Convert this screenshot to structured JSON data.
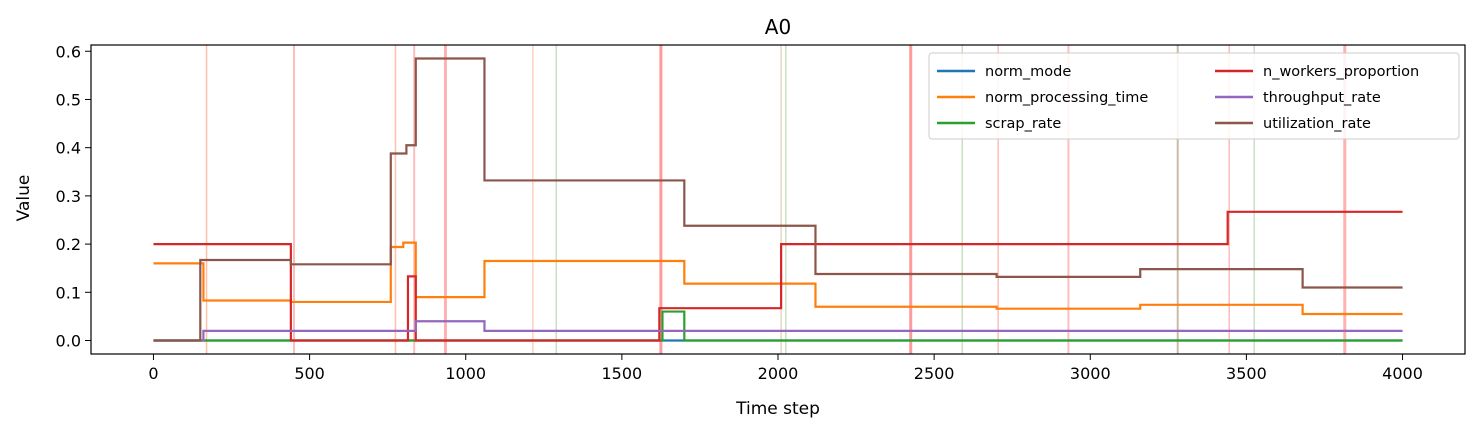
{
  "chart_data": {
    "type": "line",
    "step": true,
    "title": "A0",
    "xlabel": "Time step",
    "ylabel": "Value",
    "xlim": [
      -200,
      4200
    ],
    "ylim": [
      -0.028,
      0.613
    ],
    "xticks": [
      0,
      500,
      1000,
      1500,
      2000,
      2500,
      3000,
      3500,
      4000
    ],
    "yticks": [
      0.0,
      0.1,
      0.2,
      0.3,
      0.4,
      0.5,
      0.6
    ],
    "xtick_labels": [
      "0",
      "500",
      "1000",
      "1500",
      "2000",
      "2500",
      "3000",
      "3500",
      "4000"
    ],
    "ytick_labels": [
      "0.0",
      "0.1",
      "0.2",
      "0.3",
      "0.4",
      "0.5",
      "0.6"
    ],
    "grid": false,
    "legend": {
      "position": "top-right",
      "columns": 2
    },
    "series": [
      {
        "name": "norm_mode",
        "color": "#1f77b4",
        "points": [
          [
            0,
            0.0
          ],
          [
            4000,
            0.0
          ]
        ]
      },
      {
        "name": "norm_processing_time",
        "color": "#ff7f0e",
        "points": [
          [
            0,
            0.16
          ],
          [
            160,
            0.083
          ],
          [
            440,
            0.08
          ],
          [
            760,
            0.194
          ],
          [
            800,
            0.203
          ],
          [
            840,
            0.09
          ],
          [
            1060,
            0.165
          ],
          [
            1700,
            0.118
          ],
          [
            2120,
            0.07
          ],
          [
            2700,
            0.066
          ],
          [
            3160,
            0.074
          ],
          [
            3680,
            0.055
          ],
          [
            4000,
            0.055
          ]
        ]
      },
      {
        "name": "scrap_rate",
        "color": "#2ca02c",
        "points": [
          [
            0,
            0.0
          ],
          [
            1620,
            0.0
          ],
          [
            1630,
            0.06
          ],
          [
            1700,
            0.0
          ],
          [
            4000,
            0.0
          ]
        ]
      },
      {
        "name": "n_workers_proportion",
        "color": "#d62728",
        "points": [
          [
            0,
            0.2
          ],
          [
            440,
            0.0
          ],
          [
            815,
            0.133
          ],
          [
            840,
            0.0
          ],
          [
            1620,
            0.067
          ],
          [
            2010,
            0.2
          ],
          [
            3440,
            0.267
          ],
          [
            4000,
            0.267
          ]
        ]
      },
      {
        "name": "throughput_rate",
        "color": "#9467bd",
        "points": [
          [
            0,
            0.0
          ],
          [
            160,
            0.02
          ],
          [
            840,
            0.04
          ],
          [
            1060,
            0.02
          ],
          [
            4000,
            0.02
          ]
        ]
      },
      {
        "name": "utilization_rate",
        "color": "#8c564b",
        "points": [
          [
            0,
            0.0
          ],
          [
            150,
            0.167
          ],
          [
            440,
            0.158
          ],
          [
            760,
            0.388
          ],
          [
            810,
            0.405
          ],
          [
            840,
            0.585
          ],
          [
            1060,
            0.332
          ],
          [
            1700,
            0.238
          ],
          [
            2120,
            0.138
          ],
          [
            2700,
            0.132
          ],
          [
            3160,
            0.148
          ],
          [
            3680,
            0.11
          ],
          [
            4000,
            0.11
          ]
        ]
      }
    ],
    "event_lines": [
      {
        "x": 170,
        "color": "#ffbfa8",
        "width": 1.5
      },
      {
        "x": 450,
        "color": "#ffbcbc",
        "width": 2
      },
      {
        "x": 775,
        "color": "#ffbfa8",
        "width": 1.5
      },
      {
        "x": 835,
        "color": "#ffbcbc",
        "width": 2
      },
      {
        "x": 935,
        "color": "#ffb0b0",
        "width": 3
      },
      {
        "x": 1215,
        "color": "#ffd0c0",
        "width": 1.5
      },
      {
        "x": 1290,
        "color": "#c8dfc0",
        "width": 1.5
      },
      {
        "x": 1625,
        "color": "#ff9a9a",
        "width": 3
      },
      {
        "x": 2010,
        "color": "#e8d6c0",
        "width": 1.5
      },
      {
        "x": 2025,
        "color": "#c8dfc0",
        "width": 1.5
      },
      {
        "x": 2425,
        "color": "#ff9a9a",
        "width": 3
      },
      {
        "x": 2590,
        "color": "#c8dfc0",
        "width": 1.5
      },
      {
        "x": 2705,
        "color": "#ffbcbc",
        "width": 1.5
      },
      {
        "x": 2930,
        "color": "#ffbcbc",
        "width": 2
      },
      {
        "x": 3280,
        "color": "#cbbba6",
        "width": 2
      },
      {
        "x": 3445,
        "color": "#ffbcbc",
        "width": 1.5
      },
      {
        "x": 3525,
        "color": "#c8dfc0",
        "width": 1.5
      },
      {
        "x": 3815,
        "color": "#ffb0b0",
        "width": 3
      }
    ]
  }
}
